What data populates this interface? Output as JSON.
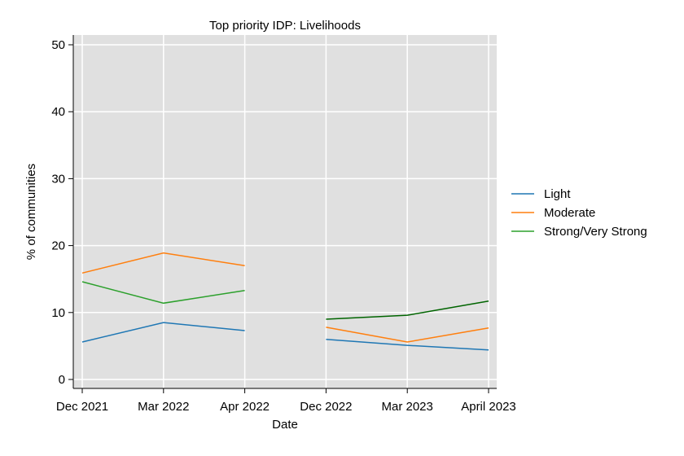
{
  "chart_data": {
    "type": "line",
    "title": "Top priority IDP: Livelihoods",
    "xlabel": "Date",
    "ylabel": "% of communities",
    "ylim": [
      0,
      50
    ],
    "yticks": [
      0,
      10,
      20,
      30,
      40,
      50
    ],
    "categories": [
      "Dec 2021",
      "Mar 2022",
      "Apr 2022",
      "Dec 2022",
      "Mar 2023",
      "April 2023"
    ],
    "grid": true,
    "legend_position": "right",
    "plot_background": "#e0e0e0",
    "series": [
      {
        "name": "Light",
        "color": "#1f77b4",
        "segments": [
          {
            "x": [
              0,
              1,
              2
            ],
            "values": [
              5.6,
              8.5,
              7.3
            ]
          },
          {
            "x": [
              3,
              4,
              5
            ],
            "values": [
              6.0,
              5.1,
              4.4
            ]
          }
        ]
      },
      {
        "name": "Moderate",
        "color": "#ff7f0e",
        "segments": [
          {
            "x": [
              0,
              1,
              2
            ],
            "values": [
              15.9,
              18.9,
              17.0
            ]
          },
          {
            "x": [
              3,
              4,
              5
            ],
            "values": [
              7.8,
              5.6,
              7.7
            ]
          }
        ]
      },
      {
        "name": "Strong/Very Strong",
        "color": "#2ca02c",
        "segments": [
          {
            "x": [
              0,
              1,
              2
            ],
            "values": [
              14.6,
              11.4,
              13.3
            ],
            "color": "#2ca02c"
          },
          {
            "x": [
              3,
              4,
              5
            ],
            "values": [
              9.0,
              9.6,
              11.7
            ],
            "color": "#006400"
          }
        ]
      }
    ]
  }
}
